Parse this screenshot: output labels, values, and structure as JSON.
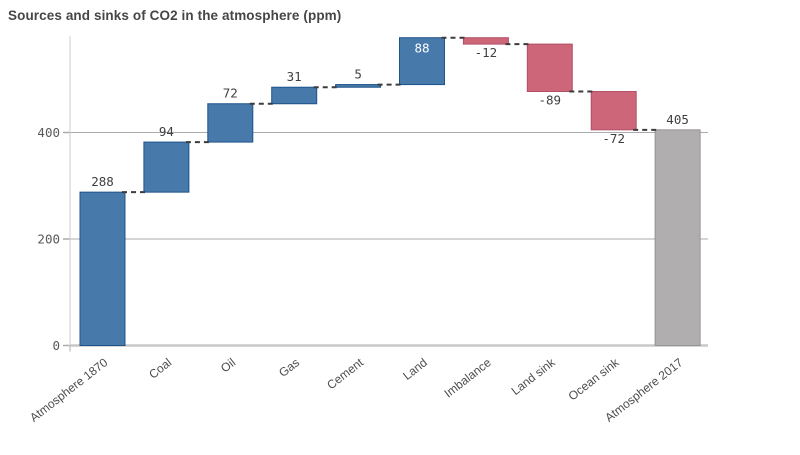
{
  "title": "Sources and sinks of CO2 in the atmosphere (ppm)",
  "chart_data": {
    "type": "bar",
    "subtype": "waterfall",
    "title": "Sources and sinks of CO2 in the atmosphere (ppm)",
    "xlabel": "",
    "ylabel": "",
    "categories": [
      "Atmosphere 1870",
      "Coal",
      "Oil",
      "Gas",
      "Cement",
      "Land",
      "Imbalance",
      "Land sink",
      "Ocean sink",
      "Atmosphere 2017"
    ],
    "values": [
      288,
      94,
      72,
      31,
      5,
      88,
      -12,
      -89,
      -72,
      405
    ],
    "bar_types": [
      "absolute",
      "relative",
      "relative",
      "relative",
      "relative",
      "relative",
      "relative",
      "relative",
      "relative",
      "total"
    ],
    "cumulative": [
      [
        0,
        288
      ],
      [
        288,
        382
      ],
      [
        382,
        454
      ],
      [
        454,
        485
      ],
      [
        485,
        490
      ],
      [
        490,
        578
      ],
      [
        578,
        566
      ],
      [
        566,
        477
      ],
      [
        477,
        405
      ],
      [
        0,
        405
      ]
    ],
    "data_labels": [
      "288",
      "94",
      "72",
      "31",
      "5",
      "88",
      "-12",
      "-89",
      "-72",
      "405"
    ],
    "label_placement": [
      "above",
      "above",
      "above",
      "above",
      "above",
      "inside",
      "below",
      "below",
      "below",
      "above"
    ],
    "yticks": [
      0,
      200,
      400
    ],
    "ylim": [
      0,
      585
    ],
    "grid": true,
    "legend": false,
    "connector_style": "dashed",
    "colors": {
      "positive": "#4779ab",
      "positive_border": "#1d548c",
      "negative": "#cc6678",
      "negative_border": "#b25068",
      "total": "#b0aeae",
      "total_border": "#979390",
      "connector": "#3c3c3c",
      "gridline": "#ababab",
      "axis": "#c8c8c8",
      "axis_line": "#cccccc",
      "value_label": "#404040",
      "inside_label": "#ffffff",
      "tick_label": "#595959",
      "category_label": "#4d4d4d",
      "title": "#464646"
    }
  }
}
